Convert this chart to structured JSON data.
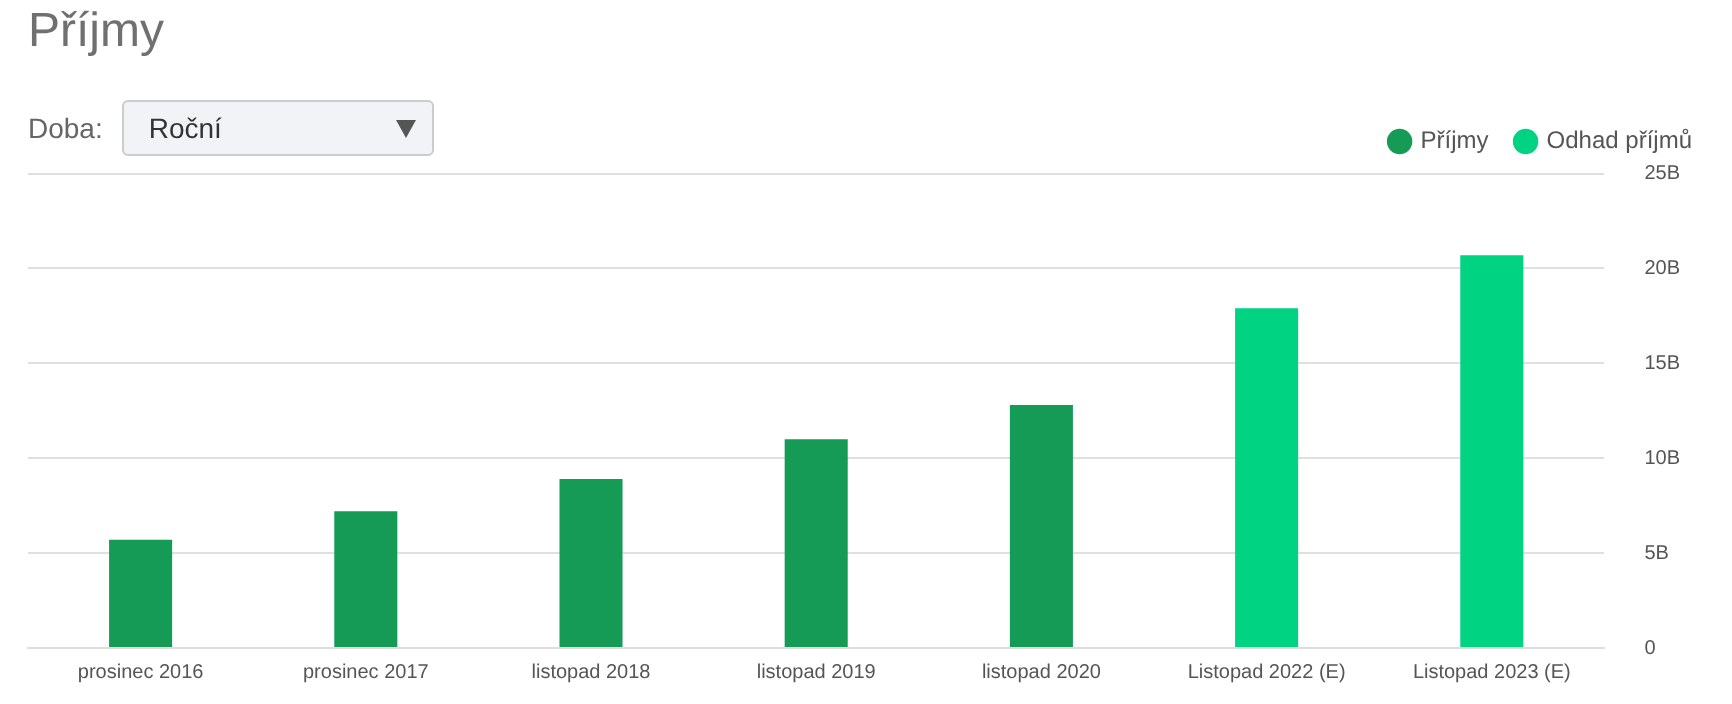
{
  "chart_data": {
    "type": "bar",
    "title": "Příjmy",
    "annotations": [
      "Doba:",
      "Roční"
    ],
    "categories": [
      "prosinec 2016",
      "prosinec 2017",
      "listopad 2018",
      "listopad 2019",
      "listopad 2020",
      "Listopad 2022 (E)",
      "Listopad 2023 (E)"
    ],
    "series": [
      {
        "name": "Příjmy",
        "color": "#169b57",
        "values": [
          5.7,
          7.2,
          8.9,
          11.0,
          12.8,
          null,
          null
        ]
      },
      {
        "name": "Odhad příjmů",
        "color": "#00d382",
        "values": [
          null,
          null,
          null,
          null,
          null,
          17.9,
          20.7
        ]
      }
    ],
    "ylim": [
      0,
      25
    ],
    "yticks": [
      0,
      {
        "value": 5,
        "label": "5B"
      },
      {
        "value": 10,
        "label": "10B"
      },
      {
        "value": 15,
        "label": "15B"
      },
      {
        "value": 20,
        "label": "20B"
      },
      {
        "value": 25,
        "label": "25B"
      }
    ],
    "grid": "y",
    "legend": "top right"
  }
}
